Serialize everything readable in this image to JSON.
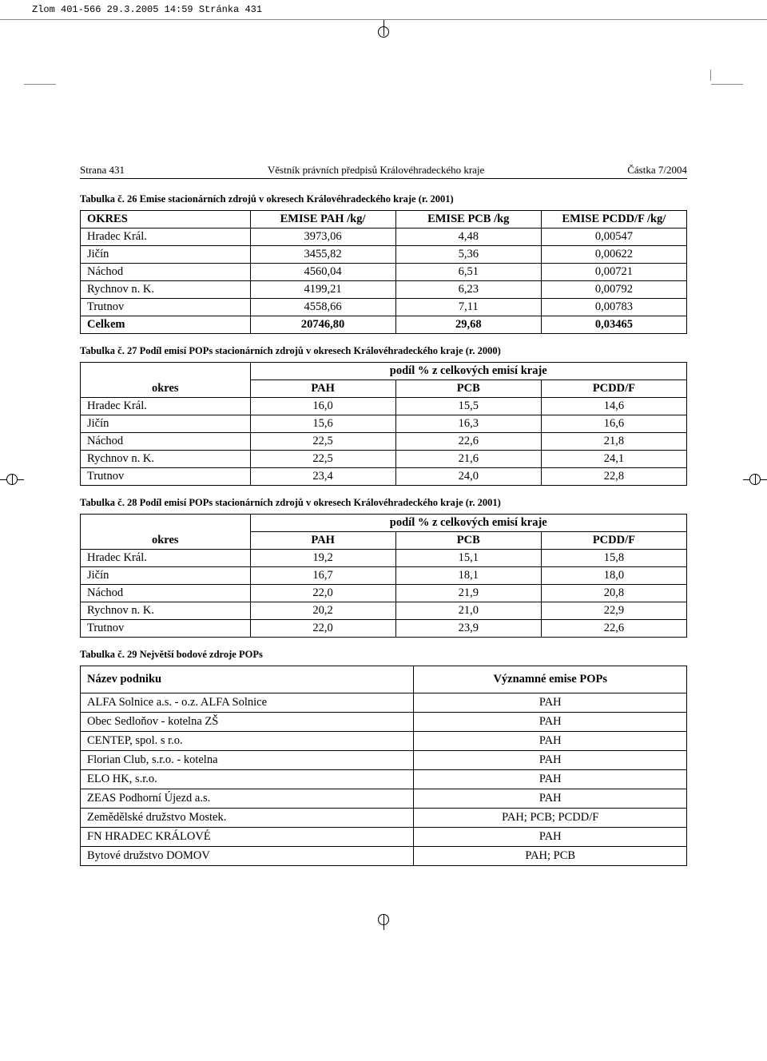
{
  "print_header": "Zlom 401-566  29.3.2005 14:59  Stránka 431",
  "header": {
    "left": "Strana 431",
    "center": "Věstník právních předpisů Královéhradeckého kraje",
    "right": "Částka 7/2004"
  },
  "t1": {
    "caption": "Tabulka č. 26 Emise stacionárních zdrojů v okresech Královéhradeckého kraje (r. 2001)",
    "columns": [
      "OKRES",
      "EMISE PAH /kg/",
      "EMISE PCB /kg",
      "EMISE PCDD/F /kg/"
    ],
    "rows": [
      [
        "Hradec Král.",
        "3973,06",
        "4,48",
        "0,00547"
      ],
      [
        "Jičín",
        "3455,82",
        "5,36",
        "0,00622"
      ],
      [
        "Náchod",
        "4560,04",
        "6,51",
        "0,00721"
      ],
      [
        "Rychnov n. K.",
        "4199,21",
        "6,23",
        "0,00792"
      ],
      [
        "Trutnov",
        "4558,66",
        "7,11",
        "0,00783"
      ]
    ],
    "total": [
      "Celkem",
      "20746,80",
      "29,68",
      "0,03465"
    ]
  },
  "t2a": {
    "caption": "Tabulka č. 27 Podíl emisí POPs stacionárních zdrojů v okresech Královéhradeckého kraje (r. 2000)",
    "span_header": "podíl % z celkových emisí kraje",
    "okres_label": "okres",
    "columns": [
      "PAH",
      "PCB",
      "PCDD/F"
    ],
    "rows": [
      [
        "Hradec Král.",
        "16,0",
        "15,5",
        "14,6"
      ],
      [
        "Jičín",
        "15,6",
        "16,3",
        "16,6"
      ],
      [
        "Náchod",
        "22,5",
        "22,6",
        "21,8"
      ],
      [
        "Rychnov n. K.",
        "22,5",
        "21,6",
        "24,1"
      ],
      [
        "Trutnov",
        "23,4",
        "24,0",
        "22,8"
      ]
    ]
  },
  "t2b": {
    "caption": "Tabulka č. 28 Podíl emisí POPs stacionárních zdrojů v okresech Královéhradeckého kraje (r. 2001)",
    "span_header": "podíl % z celkových emisí kraje",
    "okres_label": "okres",
    "columns": [
      "PAH",
      "PCB",
      "PCDD/F"
    ],
    "rows": [
      [
        "Hradec Král.",
        "19,2",
        "15,1",
        "15,8"
      ],
      [
        "Jičín",
        "16,7",
        "18,1",
        "18,0"
      ],
      [
        "Náchod",
        "22,0",
        "21,9",
        "20,8"
      ],
      [
        "Rychnov n. K.",
        "20,2",
        "21,0",
        "22,9"
      ],
      [
        "Trutnov",
        "22,0",
        "23,9",
        "22,6"
      ]
    ]
  },
  "t3": {
    "caption": "Tabulka č. 29 Největší bodové zdroje POPs",
    "columns": [
      "Název podniku",
      "Významné emise POPs"
    ],
    "rows": [
      [
        "ALFA Solnice a.s. - o.z. ALFA Solnice",
        "PAH"
      ],
      [
        "Obec Sedloňov - kotelna ZŠ",
        "PAH"
      ],
      [
        "CENTEP, spol. s r.o.",
        "PAH"
      ],
      [
        "Florian Club, s.r.o. - kotelna",
        "PAH"
      ],
      [
        "ELO HK, s.r.o.",
        "PAH"
      ],
      [
        "ZEAS Podhorní Újezd a.s.",
        "PAH"
      ],
      [
        "Zemědělské družstvo Mostek.",
        "PAH; PCB; PCDD/F"
      ],
      [
        "FN HRADEC KRÁLOVÉ",
        "PAH"
      ],
      [
        "Bytové družstvo DOMOV",
        "PAH; PCB"
      ]
    ]
  }
}
